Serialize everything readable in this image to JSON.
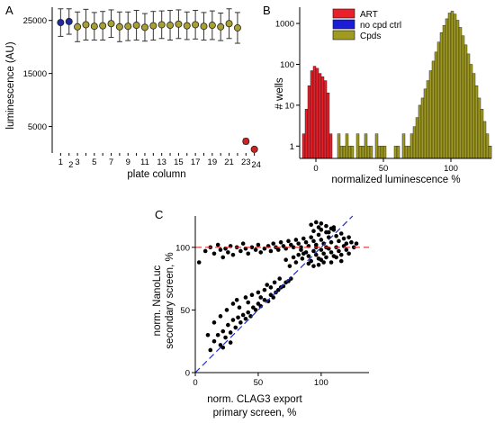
{
  "chart_data": [
    {
      "panel": "A",
      "type": "scatter",
      "title": "",
      "xlabel": "plate column",
      "ylabel": "luminescence (AU)",
      "ylim": [
        0,
        27500
      ],
      "yticks": [
        5000,
        15000,
        25000
      ],
      "ytick_labels": [
        "5000",
        "15000",
        "25000"
      ],
      "xlim": [
        0,
        25
      ],
      "xtick_labels": [
        "1",
        "2",
        "3",
        "5",
        "7",
        "9",
        "11",
        "13",
        "15",
        "17",
        "19",
        "21",
        "23",
        "24"
      ],
      "series": [
        {
          "name": "",
          "color": "#1f2a9e",
          "points": [
            {
              "x": 1,
              "y": 24600,
              "err": 2600
            },
            {
              "x": 2,
              "y": 24800,
              "err": 2400
            }
          ]
        },
        {
          "name": "",
          "color": "#a8a030",
          "points": [
            {
              "x": 3,
              "y": 23800,
              "err": 2800
            },
            {
              "x": 4,
              "y": 24200,
              "err": 2900
            },
            {
              "x": 5,
              "y": 23900,
              "err": 2600
            },
            {
              "x": 6,
              "y": 24000,
              "err": 2700
            },
            {
              "x": 7,
              "y": 24400,
              "err": 2600
            },
            {
              "x": 8,
              "y": 23800,
              "err": 2800
            },
            {
              "x": 9,
              "y": 23900,
              "err": 2700
            },
            {
              "x": 10,
              "y": 24100,
              "err": 2800
            },
            {
              "x": 11,
              "y": 23700,
              "err": 2600
            },
            {
              "x": 12,
              "y": 24000,
              "err": 2700
            },
            {
              "x": 13,
              "y": 24200,
              "err": 2600
            },
            {
              "x": 14,
              "y": 24100,
              "err": 2800
            },
            {
              "x": 15,
              "y": 24300,
              "err": 2700
            },
            {
              "x": 16,
              "y": 24000,
              "err": 2600
            },
            {
              "x": 17,
              "y": 24200,
              "err": 2700
            },
            {
              "x": 18,
              "y": 23900,
              "err": 2600
            },
            {
              "x": 19,
              "y": 24100,
              "err": 2700
            },
            {
              "x": 20,
              "y": 23800,
              "err": 2600
            },
            {
              "x": 21,
              "y": 24400,
              "err": 2800
            },
            {
              "x": 22,
              "y": 23600,
              "err": 2900
            }
          ]
        },
        {
          "name": "",
          "color": "#d42020",
          "points": [
            {
              "x": 23,
              "y": 2200,
              "err": 500
            },
            {
              "x": 24,
              "y": 700,
              "err": 300
            }
          ]
        }
      ]
    },
    {
      "panel": "B",
      "type": "bar",
      "subtype": "histogram",
      "title": "",
      "xlabel": "normalized luminescence %",
      "ylabel": "# wells",
      "yscale": "log",
      "ylim": [
        0.5,
        2500
      ],
      "yticks": [
        1,
        10,
        100,
        1000
      ],
      "ytick_labels": [
        "1",
        "10",
        "100",
        "1000"
      ],
      "xlim": [
        -12,
        130
      ],
      "xticks": [
        0,
        50,
        100
      ],
      "xtick_labels": [
        "0",
        "50",
        "100"
      ],
      "bin_width": 2,
      "legend_position": "top-left",
      "series": [
        {
          "name": "ART",
          "color": "#e8202a",
          "bins": [
            -10,
            -8,
            -6,
            -4,
            -2,
            0,
            2,
            4,
            6,
            8,
            10
          ],
          "counts": [
            2,
            8,
            30,
            70,
            90,
            80,
            60,
            50,
            40,
            20,
            2
          ]
        },
        {
          "name": "no cpd ctrl",
          "color": "#1c1cd6",
          "bins": [
            74,
            76,
            78,
            80,
            82,
            84,
            86,
            88,
            90,
            92,
            94,
            96,
            98,
            100,
            102,
            104,
            106,
            108,
            110,
            112,
            114,
            116,
            118,
            120,
            122,
            124,
            126,
            128
          ],
          "counts": [
            1,
            2,
            3,
            4,
            8,
            15,
            30,
            55,
            85,
            120,
            150,
            170,
            180,
            170,
            160,
            150,
            130,
            100,
            70,
            50,
            30,
            20,
            10,
            5,
            3,
            2,
            1,
            1
          ]
        },
        {
          "name": "Cpds",
          "color": "#a09a20",
          "bins": [
            16,
            18,
            20,
            22,
            24,
            26,
            28,
            30,
            32,
            34,
            36,
            38,
            40,
            42,
            44,
            46,
            48,
            50,
            52,
            54,
            56,
            58,
            60,
            62,
            64,
            66,
            68,
            70,
            72,
            74,
            76,
            78,
            80,
            82,
            84,
            86,
            88,
            90,
            92,
            94,
            96,
            98,
            100,
            102,
            104,
            106,
            108,
            110,
            112,
            114,
            116,
            118,
            120,
            122,
            124,
            126,
            128
          ],
          "counts": [
            2,
            1,
            1,
            2,
            1,
            1,
            0,
            2,
            1,
            1,
            2,
            1,
            1,
            0,
            2,
            1,
            1,
            1,
            0,
            0,
            0,
            1,
            1,
            0,
            2,
            1,
            1,
            2,
            3,
            5,
            10,
            15,
            25,
            40,
            70,
            120,
            200,
            350,
            600,
            900,
            1300,
            1800,
            2000,
            1700,
            1200,
            800,
            500,
            300,
            180,
            100,
            60,
            30,
            15,
            8,
            4,
            2,
            1
          ]
        }
      ]
    },
    {
      "panel": "C",
      "type": "scatter",
      "title": "",
      "xlabel_lines": [
        "norm. CLAG3 export",
        "primary screen, %"
      ],
      "ylabel_lines": [
        "norm. NanoLuc",
        "secondary screen, %"
      ],
      "xlim": [
        0,
        138
      ],
      "ylim": [
        0,
        125
      ],
      "xticks": [
        0,
        50,
        100
      ],
      "yticks": [
        0,
        50,
        100
      ],
      "xtick_labels": [
        "0",
        "50",
        "100"
      ],
      "ytick_labels": [
        "0",
        "50",
        "100"
      ],
      "reference_lines": [
        {
          "kind": "horizontal",
          "y": 100,
          "color": "#e03030",
          "dash": true
        },
        {
          "kind": "diagonal",
          "from": [
            0,
            0
          ],
          "to": [
            138,
            138
          ],
          "color": "#2030c0",
          "dash": true
        }
      ],
      "points": [
        [
          3,
          88
        ],
        [
          8,
          97
        ],
        [
          12,
          100
        ],
        [
          15,
          95
        ],
        [
          18,
          102
        ],
        [
          20,
          98
        ],
        [
          22,
          92
        ],
        [
          24,
          99
        ],
        [
          26,
          96
        ],
        [
          28,
          101
        ],
        [
          30,
          94
        ],
        [
          33,
          100
        ],
        [
          36,
          97
        ],
        [
          38,
          103
        ],
        [
          40,
          99
        ],
        [
          42,
          95
        ],
        [
          45,
          100
        ],
        [
          48,
          98
        ],
        [
          50,
          102
        ],
        [
          52,
          96
        ],
        [
          55,
          99
        ],
        [
          58,
          101
        ],
        [
          60,
          97
        ],
        [
          62,
          103
        ],
        [
          64,
          100
        ],
        [
          66,
          98
        ],
        [
          68,
          104
        ],
        [
          70,
          101
        ],
        [
          72,
          99
        ],
        [
          74,
          105
        ],
        [
          76,
          102
        ],
        [
          78,
          100
        ],
        [
          80,
          106
        ],
        [
          82,
          103
        ],
        [
          84,
          98
        ],
        [
          86,
          107
        ],
        [
          88,
          104
        ],
        [
          90,
          101
        ],
        [
          92,
          108
        ],
        [
          94,
          105
        ],
        [
          96,
          102
        ],
        [
          98,
          110
        ],
        [
          100,
          106
        ],
        [
          102,
          103
        ],
        [
          104,
          112
        ],
        [
          106,
          108
        ],
        [
          108,
          104
        ],
        [
          110,
          114
        ],
        [
          112,
          109
        ],
        [
          114,
          105
        ],
        [
          116,
          111
        ],
        [
          118,
          107
        ],
        [
          120,
          103
        ],
        [
          122,
          108
        ],
        [
          124,
          104
        ],
        [
          126,
          100
        ],
        [
          128,
          103
        ],
        [
          72,
          90
        ],
        [
          75,
          85
        ],
        [
          78,
          92
        ],
        [
          80,
          88
        ],
        [
          82,
          94
        ],
        [
          85,
          91
        ],
        [
          88,
          96
        ],
        [
          90,
          93
        ],
        [
          92,
          89
        ],
        [
          94,
          97
        ],
        [
          96,
          94
        ],
        [
          98,
          91
        ],
        [
          100,
          98
        ],
        [
          102,
          95
        ],
        [
          104,
          92
        ],
        [
          106,
          99
        ],
        [
          108,
          96
        ],
        [
          110,
          93
        ],
        [
          112,
          100
        ],
        [
          114,
          97
        ],
        [
          116,
          94
        ],
        [
          118,
          101
        ],
        [
          120,
          98
        ],
        [
          122,
          95
        ],
        [
          84,
          100
        ],
        [
          86,
          95
        ],
        [
          96,
          100
        ],
        [
          100,
          90
        ],
        [
          104,
          100
        ],
        [
          108,
          88
        ],
        [
          112,
          92
        ],
        [
          116,
          89
        ],
        [
          90,
          87
        ],
        [
          94,
          85
        ],
        [
          98,
          86
        ],
        [
          102,
          88
        ],
        [
          92,
          118
        ],
        [
          96,
          120
        ],
        [
          100,
          119
        ],
        [
          104,
          117
        ],
        [
          108,
          115
        ],
        [
          94,
          113
        ],
        [
          100,
          114
        ],
        [
          106,
          112
        ],
        [
          110,
          116
        ],
        [
          98,
          116
        ],
        [
          12,
          18
        ],
        [
          15,
          25
        ],
        [
          18,
          30
        ],
        [
          20,
          22
        ],
        [
          22,
          33
        ],
        [
          24,
          28
        ],
        [
          26,
          38
        ],
        [
          28,
          32
        ],
        [
          30,
          42
        ],
        [
          32,
          36
        ],
        [
          34,
          44
        ],
        [
          36,
          40
        ],
        [
          38,
          46
        ],
        [
          40,
          43
        ],
        [
          42,
          48
        ],
        [
          44,
          45
        ],
        [
          46,
          52
        ],
        [
          48,
          50
        ],
        [
          50,
          55
        ],
        [
          52,
          53
        ],
        [
          55,
          58
        ],
        [
          58,
          57
        ],
        [
          60,
          62
        ],
        [
          62,
          60
        ],
        [
          64,
          64
        ],
        [
          66,
          66
        ],
        [
          68,
          68
        ],
        [
          70,
          69
        ],
        [
          72,
          72
        ],
        [
          74,
          73
        ],
        [
          76,
          75
        ],
        [
          25,
          50
        ],
        [
          30,
          55
        ],
        [
          35,
          52
        ],
        [
          40,
          60
        ],
        [
          45,
          62
        ],
        [
          50,
          64
        ],
        [
          55,
          66
        ],
        [
          60,
          68
        ],
        [
          20,
          45
        ],
        [
          15,
          40
        ],
        [
          33,
          58
        ],
        [
          42,
          56
        ],
        [
          52,
          60
        ],
        [
          57,
          70
        ],
        [
          63,
          72
        ],
        [
          67,
          75
        ],
        [
          22,
          20
        ],
        [
          10,
          30
        ],
        [
          28,
          24
        ]
      ]
    }
  ],
  "panels": {
    "a": {
      "letter": "A"
    },
    "b": {
      "letter": "B"
    },
    "c": {
      "letter": "C"
    }
  }
}
